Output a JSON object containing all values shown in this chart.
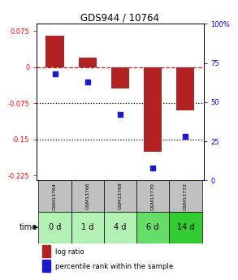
{
  "title": "GDS944 / 10764",
  "samples": [
    "GSM13764",
    "GSM13766",
    "GSM13768",
    "GSM13770",
    "GSM13772"
  ],
  "time_labels": [
    "0 d",
    "1 d",
    "4 d",
    "6 d",
    "14 d"
  ],
  "log_ratios": [
    0.065,
    0.02,
    -0.045,
    -0.175,
    -0.09
  ],
  "percentile_ranks": [
    68,
    63,
    42,
    8,
    28
  ],
  "bar_color": "#b22222",
  "dot_color": "#1a1acd",
  "ylim_left": [
    -0.235,
    0.09
  ],
  "ylim_right": [
    0,
    100
  ],
  "yticks_left": [
    0.075,
    0.0,
    -0.075,
    -0.15,
    -0.225
  ],
  "yticks_right": [
    100,
    75,
    50,
    25,
    0
  ],
  "ytick_left_labels": [
    "0.075",
    "0",
    "-0.075",
    "-0.15",
    "-0.225"
  ],
  "ytick_right_labels": [
    "100%",
    "75",
    "50",
    "25",
    "0"
  ],
  "hline_y": 0.0,
  "dotted_lines": [
    -0.075,
    -0.15
  ],
  "background_color": "#ffffff",
  "sample_box_color": "#c0c0c0",
  "time_colors": [
    "#b3f0b3",
    "#b3f0b3",
    "#b3f0b3",
    "#66dd66",
    "#33cc33"
  ],
  "legend_items": [
    {
      "label": "log ratio",
      "color": "#b22222"
    },
    {
      "label": "percentile rank within the sample",
      "color": "#1a1acd"
    }
  ],
  "bar_width": 0.55
}
